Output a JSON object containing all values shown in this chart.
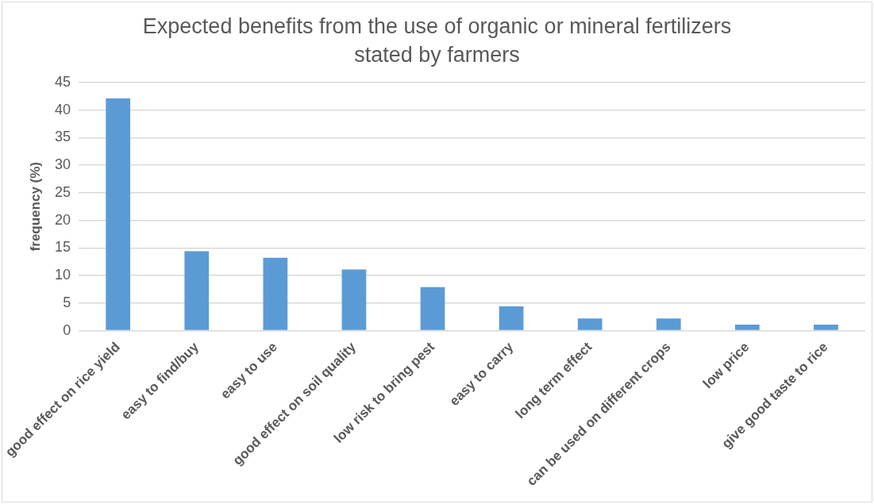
{
  "chart_data": {
    "type": "bar",
    "title": "Expected benefits from the use of organic or mineral fertilizers\nstated by farmers",
    "ylabel": "frequency (%)",
    "categories": [
      "good effect on rice yield",
      "easy to find/buy",
      "easy to use",
      "good effect on soil quality",
      "low risk to bring pest",
      "easy to carry",
      "long term effect",
      "can be used on different crops",
      "low price",
      "give good taste to rice"
    ],
    "values": [
      42.1,
      14.4,
      13.2,
      11.1,
      7.9,
      4.4,
      2.2,
      2.2,
      1.1,
      1.1
    ],
    "color": "#5b9bd5",
    "ylim": [
      0,
      45
    ],
    "yticks": [
      0,
      5,
      10,
      15,
      20,
      25,
      30,
      35,
      40,
      45
    ],
    "grid": "y",
    "legend": false
  }
}
